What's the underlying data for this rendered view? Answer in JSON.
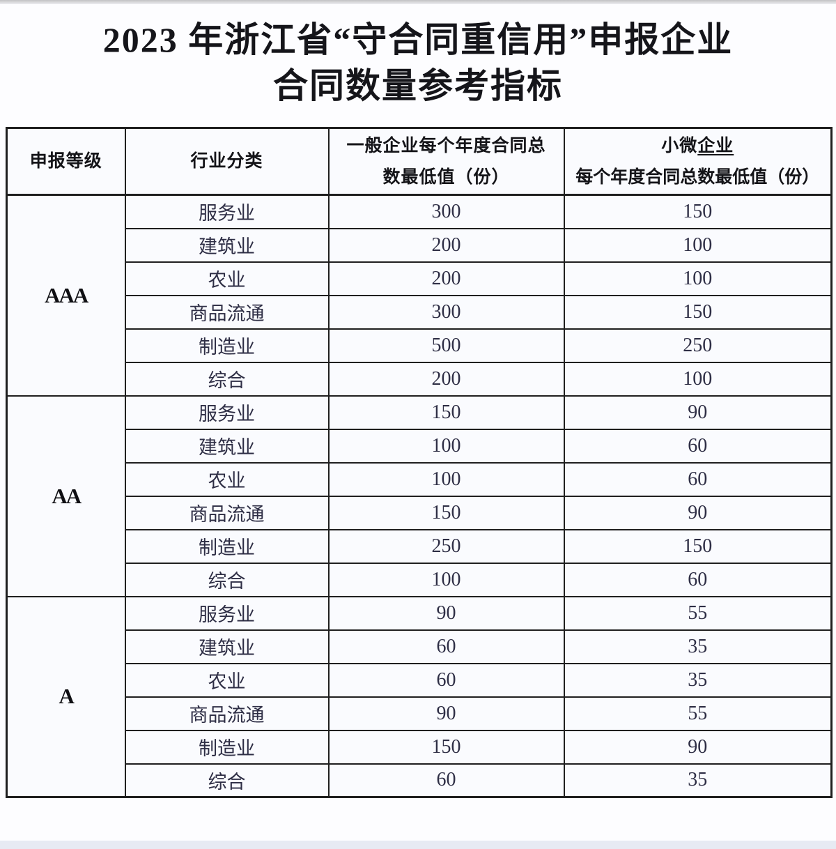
{
  "page": {
    "title_line1": "2023 年浙江省“守合同重信用”申报企业",
    "title_line2": "合同数量参考指标"
  },
  "table": {
    "headers": {
      "level": "申报等级",
      "industry": "行业分类",
      "general_line1": "一般企业每个年度合同总",
      "general_line2": "数最低值（份）",
      "micro_line1_plain": "小微",
      "micro_line1_underlined": "企业",
      "micro_line2": "每个年度合同总数最低值（份）"
    },
    "groups": [
      {
        "level": "AAA",
        "rows": [
          [
            "服务业",
            "300",
            "150"
          ],
          [
            "建筑业",
            "200",
            "100"
          ],
          [
            "农业",
            "200",
            "100"
          ],
          [
            "商品流通",
            "300",
            "150"
          ],
          [
            "制造业",
            "500",
            "250"
          ],
          [
            "综合",
            "200",
            "100"
          ]
        ]
      },
      {
        "level": "AA",
        "rows": [
          [
            "服务业",
            "150",
            "90"
          ],
          [
            "建筑业",
            "100",
            "60"
          ],
          [
            "农业",
            "100",
            "60"
          ],
          [
            "商品流通",
            "150",
            "90"
          ],
          [
            "制造业",
            "250",
            "150"
          ],
          [
            "综合",
            "100",
            "60"
          ]
        ]
      },
      {
        "level": "A",
        "rows": [
          [
            "服务业",
            "90",
            "55"
          ],
          [
            "建筑业",
            "60",
            "35"
          ],
          [
            "农业",
            "60",
            "35"
          ],
          [
            "商品流通",
            "90",
            "55"
          ],
          [
            "制造业",
            "150",
            "90"
          ],
          [
            "综合",
            "60",
            "35"
          ]
        ]
      }
    ]
  },
  "colors": {
    "border": "#1f1f1f",
    "title_text": "#15151a",
    "body_text": "#2e2e45",
    "cell_background": "#fafbfe",
    "page_background": "#fdfdff"
  }
}
